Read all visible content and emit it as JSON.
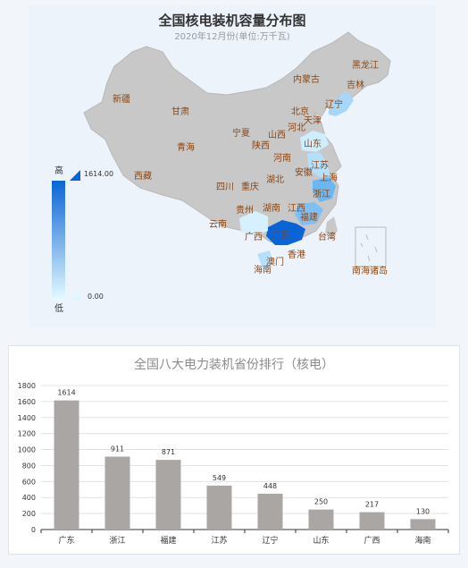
{
  "map": {
    "title": "全国核电装机容量分布图",
    "subtitle": "2020年12月份(单位:万千瓦)",
    "legend": {
      "high_label": "高",
      "low_label": "低",
      "max_value": "1614.00",
      "min_value": "0.00"
    },
    "colors": {
      "land": "#c8c8c8",
      "low": "#d6f0ff",
      "high": "#0a64d6",
      "label": "#8b4513"
    },
    "regions": [
      {
        "name": "黑龙江"
      },
      {
        "name": "吉林"
      },
      {
        "name": "辽宁"
      },
      {
        "name": "内蒙古"
      },
      {
        "name": "北京"
      },
      {
        "name": "天津"
      },
      {
        "name": "河北"
      },
      {
        "name": "山西"
      },
      {
        "name": "山东"
      },
      {
        "name": "新疆"
      },
      {
        "name": "甘肃"
      },
      {
        "name": "宁夏"
      },
      {
        "name": "陕西"
      },
      {
        "name": "青海"
      },
      {
        "name": "河南"
      },
      {
        "name": "江苏"
      },
      {
        "name": "安徽"
      },
      {
        "name": "上海"
      },
      {
        "name": "西藏"
      },
      {
        "name": "湖北"
      },
      {
        "name": "四川"
      },
      {
        "name": "重庆"
      },
      {
        "name": "浙江"
      },
      {
        "name": "贵州"
      },
      {
        "name": "湖南"
      },
      {
        "name": "江西"
      },
      {
        "name": "福建"
      },
      {
        "name": "云南"
      },
      {
        "name": "广西"
      },
      {
        "name": "广东"
      },
      {
        "name": "台湾"
      },
      {
        "name": "香港"
      },
      {
        "name": "澳门"
      },
      {
        "name": "海南"
      },
      {
        "name": "南海诸岛"
      }
    ]
  },
  "chart_data": {
    "type": "bar",
    "title": "全国八大电力装机省份排行（核电）",
    "categories": [
      "广东",
      "浙江",
      "福建",
      "江苏",
      "辽宁",
      "山东",
      "广西",
      "海南"
    ],
    "values": [
      1614,
      911,
      871,
      549,
      448,
      250,
      217,
      130
    ],
    "ylim": [
      0,
      1800
    ],
    "yticks": [
      0,
      200,
      400,
      600,
      800,
      1000,
      1200,
      1400,
      1600,
      1800
    ],
    "grid": true,
    "bar_color": "#aaa6a4"
  }
}
